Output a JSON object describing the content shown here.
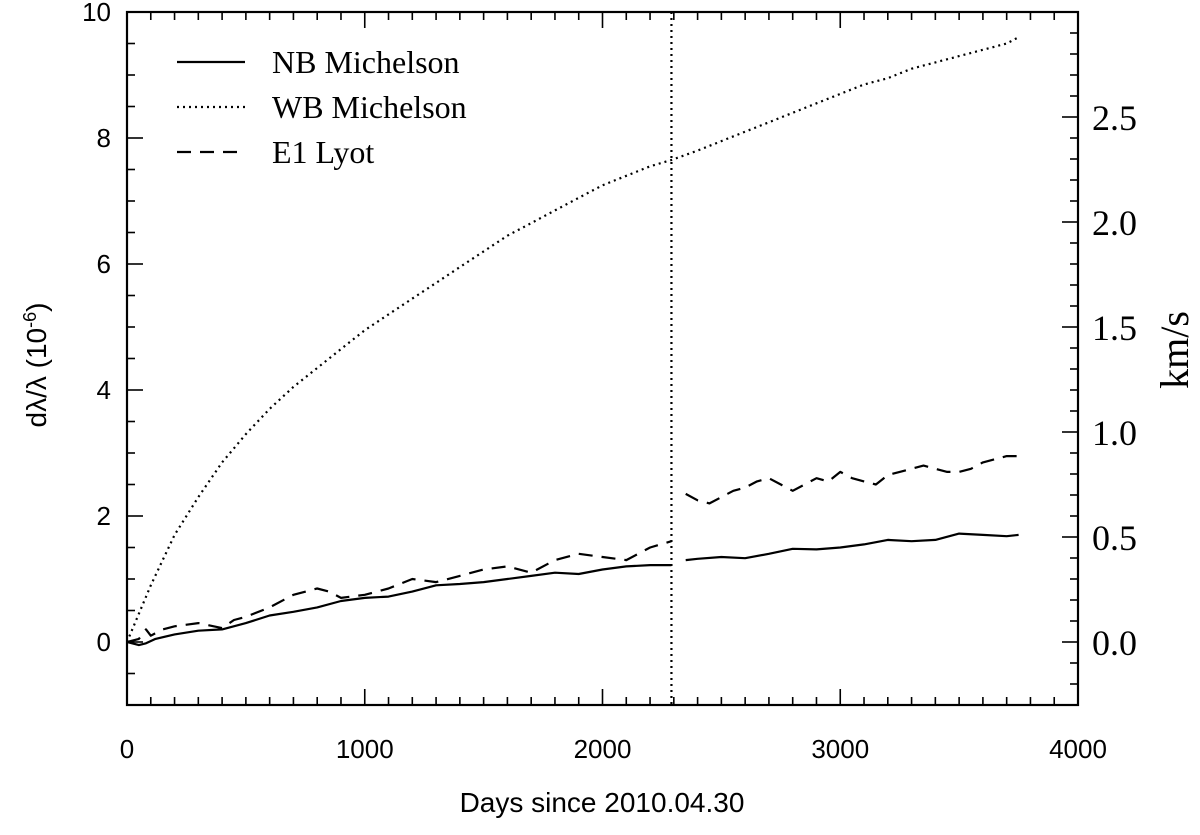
{
  "chart_data": {
    "type": "line",
    "title": "",
    "xlabel": "Days since 2010.04.30",
    "ylabel_left": "dλ/λ (10",
    "ylabel_left_exp": "-6",
    "ylabel_left_close": ")",
    "ylabel_right": "km/s",
    "xlim": [
      0,
      4000
    ],
    "ylim": [
      -1,
      10
    ],
    "y2lim": [
      -0.3,
      3.0
    ],
    "xticks": [
      0,
      1000,
      2000,
      3000,
      4000
    ],
    "yticks": [
      0,
      2,
      4,
      6,
      8,
      10
    ],
    "y2ticks": [
      "0.0",
      "0.5",
      "1.0",
      "1.5",
      "2.0",
      "2.5"
    ],
    "y2tick_values": [
      0.0,
      0.5,
      1.0,
      1.5,
      2.0,
      2.5
    ],
    "vline_x": 2290,
    "legend_position": "top-left",
    "series": [
      {
        "name": "NB Michelson",
        "style": "solid",
        "segments": [
          {
            "x": [
              0,
              50,
              80,
              120,
              200,
              300,
              400,
              500,
              600,
              700,
              800,
              900,
              1000,
              1100,
              1200,
              1300,
              1400,
              1500,
              1600,
              1700,
              1800,
              1900,
              2000,
              2100,
              2200,
              2290
            ],
            "y": [
              0.0,
              -0.05,
              -0.02,
              0.05,
              0.12,
              0.18,
              0.2,
              0.3,
              0.42,
              0.48,
              0.55,
              0.65,
              0.7,
              0.72,
              0.8,
              0.9,
              0.92,
              0.95,
              1.0,
              1.05,
              1.1,
              1.08,
              1.15,
              1.2,
              1.22,
              1.22
            ]
          },
          {
            "x": [
              2350,
              2400,
              2500,
              2600,
              2700,
              2800,
              2900,
              3000,
              3100,
              3200,
              3300,
              3400,
              3500,
              3600,
              3700,
              3750
            ],
            "y": [
              1.3,
              1.32,
              1.35,
              1.33,
              1.4,
              1.48,
              1.47,
              1.5,
              1.55,
              1.62,
              1.6,
              1.62,
              1.72,
              1.7,
              1.68,
              1.7
            ]
          }
        ]
      },
      {
        "name": "WB Michelson",
        "style": "dotted",
        "segments": [
          {
            "x": [
              0,
              100,
              200,
              300,
              400,
              500,
              600,
              700,
              800,
              900,
              1000,
              1100,
              1200,
              1300,
              1400,
              1500,
              1600,
              1700,
              1800,
              1900,
              2000,
              2100,
              2200,
              2290,
              2400,
              2500,
              2600,
              2700,
              2800,
              2900,
              3000,
              3100,
              3200,
              3300,
              3400,
              3500,
              3600,
              3700,
              3750
            ],
            "y": [
              0.0,
              0.9,
              1.7,
              2.3,
              2.85,
              3.3,
              3.7,
              4.05,
              4.35,
              4.65,
              4.95,
              5.2,
              5.45,
              5.7,
              5.95,
              6.2,
              6.45,
              6.65,
              6.85,
              7.05,
              7.25,
              7.4,
              7.55,
              7.65,
              7.8,
              7.95,
              8.1,
              8.25,
              8.4,
              8.55,
              8.7,
              8.85,
              8.95,
              9.1,
              9.2,
              9.3,
              9.4,
              9.5,
              9.6
            ]
          }
        ]
      },
      {
        "name": "E1 Lyot",
        "style": "dashed",
        "segments": [
          {
            "x": [
              0,
              50,
              80,
              100,
              150,
              200,
              300,
              400,
              450,
              500,
              600,
              700,
              800,
              850,
              900,
              1000,
              1100,
              1200,
              1300,
              1400,
              1500,
              1600,
              1700,
              1800,
              1900,
              2000,
              2100,
              2200,
              2290
            ],
            "y": [
              0.0,
              0.05,
              0.2,
              0.1,
              0.2,
              0.25,
              0.3,
              0.22,
              0.35,
              0.4,
              0.55,
              0.75,
              0.85,
              0.8,
              0.7,
              0.75,
              0.85,
              1.0,
              0.95,
              1.05,
              1.15,
              1.2,
              1.1,
              1.3,
              1.4,
              1.35,
              1.3,
              1.5,
              1.6
            ]
          },
          {
            "x": [
              2350,
              2400,
              2450,
              2500,
              2550,
              2600,
              2650,
              2700,
              2750,
              2800,
              2850,
              2900,
              2950,
              3000,
              3050,
              3100,
              3150,
              3200,
              3250,
              3300,
              3350,
              3400,
              3450,
              3500,
              3550,
              3600,
              3650,
              3700,
              3750
            ],
            "y": [
              2.35,
              2.25,
              2.2,
              2.3,
              2.4,
              2.45,
              2.55,
              2.6,
              2.5,
              2.4,
              2.5,
              2.6,
              2.55,
              2.7,
              2.6,
              2.55,
              2.5,
              2.65,
              2.7,
              2.75,
              2.8,
              2.75,
              2.7,
              2.7,
              2.75,
              2.85,
              2.9,
              2.95,
              2.95
            ]
          }
        ]
      }
    ]
  }
}
